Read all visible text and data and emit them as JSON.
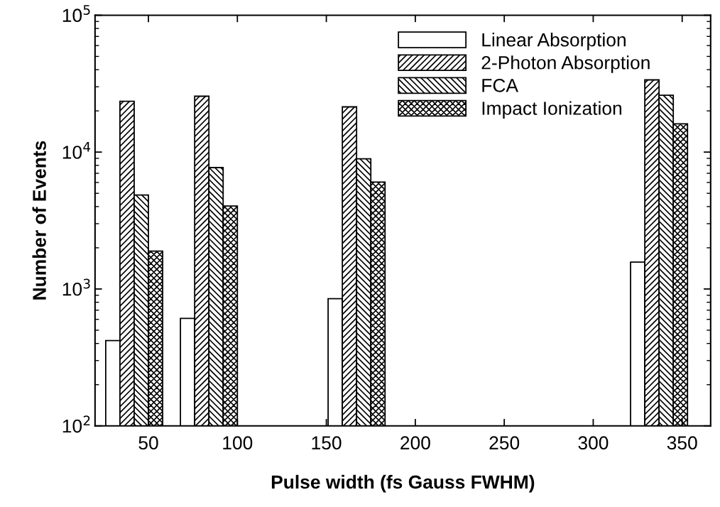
{
  "chart_data": {
    "type": "bar",
    "xlabel": "Pulse width (fs Gauss FWHM)",
    "ylabel": "Number of Events",
    "log": "y",
    "xlim": [
      20,
      366
    ],
    "xticks": [
      50,
      100,
      150,
      200,
      250,
      300,
      350
    ],
    "ylim": [
      100,
      100000
    ],
    "yticks": [
      {
        "value": 100,
        "label": "10$^{2}$"
      },
      {
        "value": 1000,
        "label": "10$^{3}$"
      },
      {
        "value": 10000,
        "label": "10$^{4}$"
      },
      {
        "value": 100000,
        "label": "10$^{5}$"
      }
    ],
    "series": [
      {
        "name": "Linear Absorption",
        "color": "#ffffff",
        "x": [
          30,
          72,
          155,
          325
        ],
        "values": [
          420,
          610,
          850,
          1570
        ]
      },
      {
        "name": "2-Photon Absorption",
        "color": "#000000",
        "x": [
          38,
          80,
          163,
          333
        ],
        "values": [
          23500,
          25600,
          21400,
          33700
        ]
      },
      {
        "name": "FCA",
        "color": "#000000",
        "x": [
          46,
          88,
          171,
          341
        ],
        "values": [
          4860,
          7710,
          8930,
          26000
        ]
      },
      {
        "name": "Impact Ionization",
        "color": "#000000",
        "x": [
          54,
          96,
          179,
          349
        ],
        "values": [
          1890,
          4040,
          6040,
          16100
        ]
      }
    ],
    "grid": false,
    "legend": "top right"
  }
}
